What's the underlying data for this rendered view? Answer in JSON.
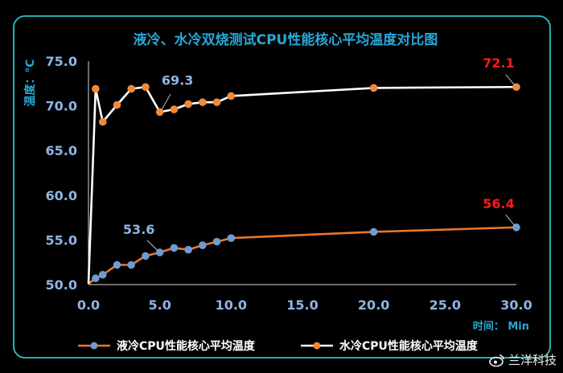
{
  "chart_data": {
    "type": "line",
    "title": "液冷、水冷双烧测试CPU性能核心平均温度对比图",
    "ylabel": "温度：℃",
    "xlabel": "时间： Min",
    "xlim": [
      0,
      30
    ],
    "ylim": [
      50,
      75
    ],
    "x_ticks": [
      "0.0",
      "5.0",
      "10.0",
      "15.0",
      "20.0",
      "25.0",
      "30.0"
    ],
    "y_ticks": [
      "50.0",
      "55.0",
      "60.0",
      "65.0",
      "70.0",
      "75.0"
    ],
    "grid": false,
    "legend": "bottom",
    "series": [
      {
        "name": "液冷CPU性能核心平均温度",
        "line_color": "#e8782a",
        "marker_color": "#6e9bd3",
        "x": [
          0,
          0.5,
          1,
          2,
          3,
          4,
          5,
          6,
          7,
          8,
          9,
          10,
          20,
          30
        ],
        "y": [
          50.1,
          50.7,
          51.1,
          52.2,
          52.2,
          53.2,
          53.6,
          54.1,
          53.9,
          54.4,
          54.8,
          55.2,
          55.9,
          56.4
        ]
      },
      {
        "name": "水冷CPU性能核心平均温度",
        "line_color": "#ffffff",
        "marker_color": "#f08a3a",
        "x": [
          0,
          0.5,
          1,
          2,
          3,
          4,
          5,
          6,
          7,
          8,
          9,
          10,
          20,
          30
        ],
        "y": [
          50.1,
          71.9,
          68.2,
          70.1,
          71.9,
          72.1,
          69.3,
          69.6,
          70.2,
          70.4,
          70.4,
          71.1,
          72.0,
          72.1
        ]
      }
    ],
    "annotations": [
      {
        "series": 1,
        "point": 6,
        "text": "69.3",
        "color": "#8fb4e3"
      },
      {
        "series": 1,
        "point": 13,
        "text": "72.1",
        "color": "#ff1a1a"
      },
      {
        "series": 0,
        "point": 6,
        "text": "53.6",
        "color": "#8fb4e3"
      },
      {
        "series": 0,
        "point": 13,
        "text": "56.4",
        "color": "#ff1a1a"
      }
    ],
    "colors": {
      "border": "#26c6c6",
      "title": "#2aa7d6",
      "axis": "#8fb4e3",
      "axis_title": "#2aa7d6",
      "legend_text": "#ffffff"
    }
  },
  "watermark": {
    "text": "兰洋科技",
    "icon": "weibo-icon"
  }
}
